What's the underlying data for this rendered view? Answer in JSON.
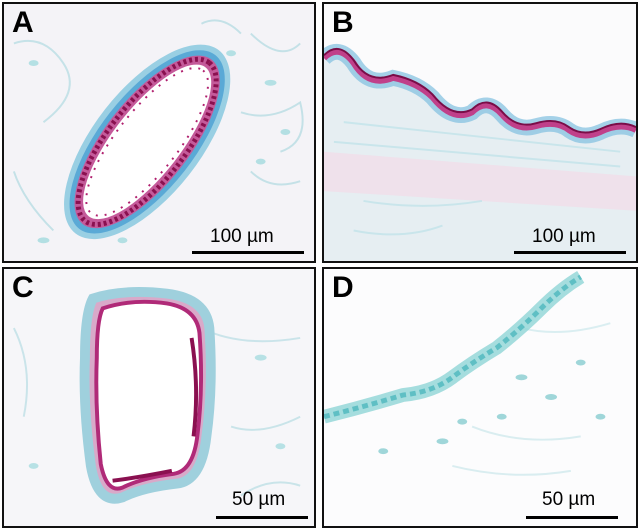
{
  "panels": [
    {
      "letter": "A",
      "scale_label": "100 µm"
    },
    {
      "letter": "B",
      "scale_label": "100 µm"
    },
    {
      "letter": "C",
      "scale_label": "50 µm"
    },
    {
      "letter": "D",
      "scale_label": "50 µm"
    }
  ],
  "colors": {
    "stain_magenta": "#b0206e",
    "stain_pink": "#d98ab8",
    "counterstain_cyan": "#7fcfd3",
    "connective_blue": "#a8d8e0",
    "background": "#ffffff"
  }
}
